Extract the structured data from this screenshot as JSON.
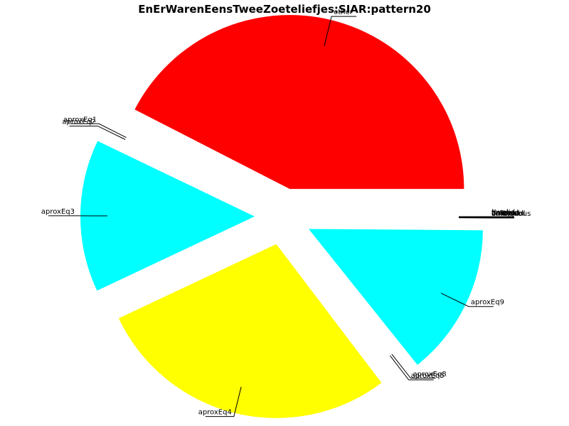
{
  "chart_data": {
    "type": "pie",
    "title": "EnErWarenEensTweeZoeteliefjes:SIAR:pattern20",
    "slices": [
      {
        "label": "other",
        "value": 41.7,
        "color": "#ff0000"
      },
      {
        "label": "aproxEq1",
        "value": 0.2,
        "color": "#ffffff"
      },
      {
        "label": "aproxEq2",
        "value": 0.2,
        "color": "#ffffff"
      },
      {
        "label": "aproxEq3",
        "value": 13.9,
        "color": "#00ffff"
      },
      {
        "label": "aproxEq4",
        "value": 27.8,
        "color": "#ffff00"
      },
      {
        "label": "aproxEq5",
        "value": 0.2,
        "color": "#ffffff"
      },
      {
        "label": "aproxEq8",
        "value": 0.2,
        "color": "#ffffff"
      },
      {
        "label": "aproxEq9",
        "value": 13.9,
        "color": "#00ffff"
      },
      {
        "label": "ambiguous",
        "value": 0.02,
        "color": "#ffffff"
      },
      {
        "label": "canceled",
        "value": 0.02,
        "color": "#ffffff"
      },
      {
        "label": "collapsed",
        "value": 0.02,
        "color": "#ffffff"
      },
      {
        "label": "finished",
        "value": 0.02,
        "color": "#ffffff"
      },
      {
        "label": "timeout",
        "value": 0.02,
        "color": "#ffffff"
      },
      {
        "label": "invalid",
        "value": 0.02,
        "color": "#ffffff"
      }
    ]
  }
}
